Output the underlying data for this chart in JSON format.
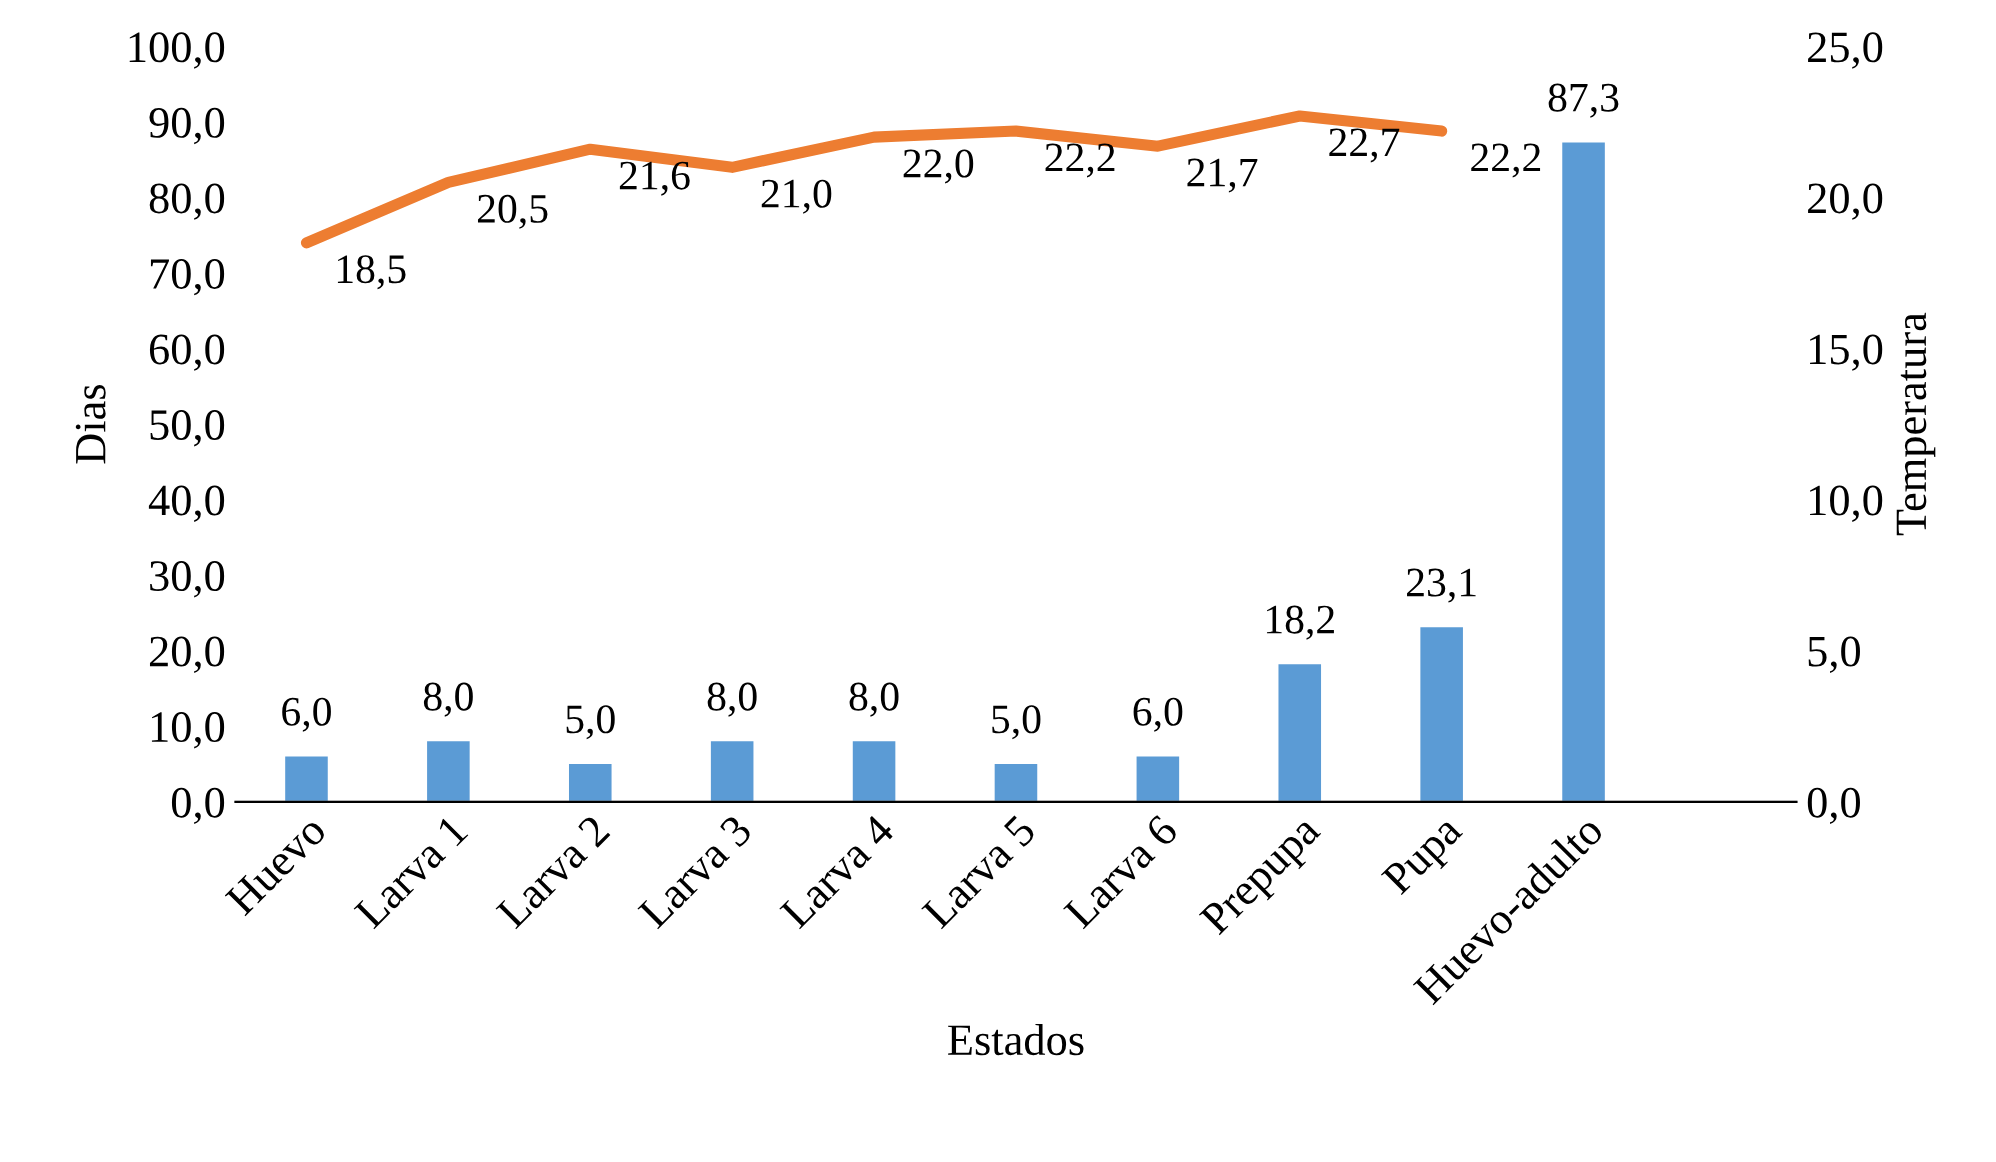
{
  "chart_data": {
    "type": "bar",
    "xlabel": "Estados",
    "ylabel": "Dias",
    "y2label": "Temperatura",
    "categories": [
      "Huevo",
      "Larva 1",
      "Larva 2",
      "Larva 3",
      "Larva 4",
      "Larva 5",
      "Larva 6",
      "Prepupa",
      "Pupa",
      "Huevo-adulto",
      null
    ],
    "series": [
      {
        "color": "#5b9bd5",
        "values": [
          6.0,
          8.0,
          5.0,
          8.0,
          8.0,
          5.0,
          6.0,
          18.2,
          23.1,
          87.3,
          null
        ],
        "value_labels": [
          "6,0",
          "8,0",
          "5,0",
          "8,0",
          "8,0",
          "5,0",
          "6,0",
          "18,2",
          "23,1",
          "87,3",
          null
        ]
      },
      {
        "type": "line",
        "axis": "y2",
        "color": "#ed7d31",
        "values": [
          18.5,
          20.5,
          21.6,
          21.0,
          22.0,
          22.2,
          21.7,
          22.7,
          22.2,
          null,
          null
        ],
        "value_labels": [
          "18,5",
          "20,5",
          "21,6",
          "21,0",
          "22,0",
          "22,2",
          "21,7",
          "22,7",
          "22,2",
          null,
          null
        ]
      }
    ],
    "ylim": [
      0,
      100
    ],
    "yticks": [
      {
        "value": 0,
        "label": "0,0"
      },
      {
        "value": 10,
        "label": "10,0"
      },
      {
        "value": 20,
        "label": "20,0"
      },
      {
        "value": 30,
        "label": "30,0"
      },
      {
        "value": 40,
        "label": "40,0"
      },
      {
        "value": 50,
        "label": "50,0"
      },
      {
        "value": 60,
        "label": "60,0"
      },
      {
        "value": 70,
        "label": "70,0"
      },
      {
        "value": 80,
        "label": "80,0"
      },
      {
        "value": 90,
        "label": "90,0"
      },
      {
        "value": 100,
        "label": "100,0"
      }
    ],
    "y2lim": [
      0,
      25
    ],
    "y2ticks": [
      {
        "value": 0,
        "label": "0,0"
      },
      {
        "value": 5,
        "label": "5,0"
      },
      {
        "value": 10,
        "label": "10,0"
      },
      {
        "value": 15,
        "label": "15,0"
      },
      {
        "value": 20,
        "label": "20,0"
      },
      {
        "value": 25,
        "label": "25,0"
      }
    ],
    "grid": false,
    "legend": false
  }
}
